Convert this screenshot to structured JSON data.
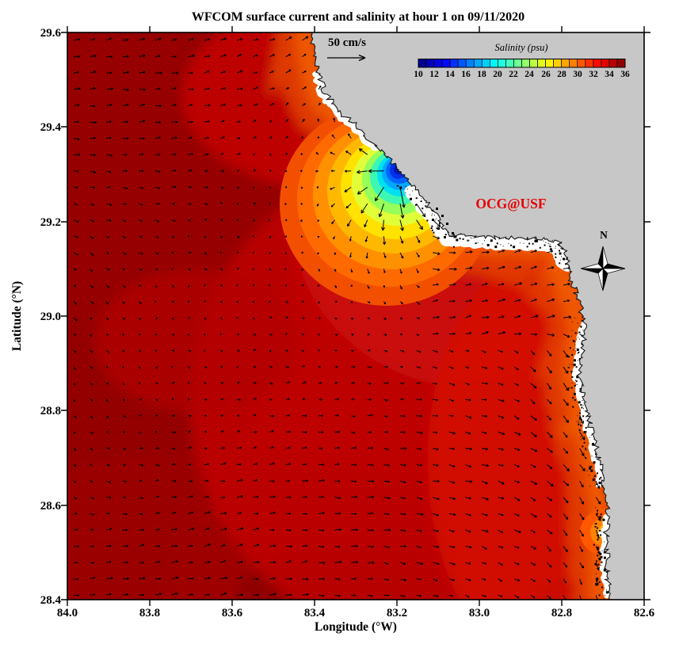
{
  "title": "WFCOM surface current and salinity at hour 1 on 09/11/2020",
  "watermark": "OCG@USF",
  "compass": {
    "label": "N"
  },
  "scale_arrow": {
    "label": "50 cm/s"
  },
  "axes": {
    "xlabel": "Longitude (°W)",
    "ylabel": "Latitude (°N)",
    "x_ticks": [
      "84.0",
      "83.8",
      "83.6",
      "83.4",
      "83.2",
      "83.0",
      "82.8",
      "82.6"
    ],
    "y_ticks": [
      "29.6",
      "29.4",
      "29.2",
      "29.0",
      "28.8",
      "28.6",
      "28.4"
    ]
  },
  "colorbar": {
    "title": "Salinity (psu)",
    "ticks": [
      "10",
      "12",
      "14",
      "16",
      "18",
      "20",
      "22",
      "24",
      "26",
      "28",
      "30",
      "32",
      "34",
      "36"
    ],
    "range": [
      10,
      36
    ],
    "segments": 26,
    "colormap": "jet"
  },
  "colors": {
    "land": "#c7c7c7",
    "ocean_high_salinity": "#a60404",
    "coastal_band_orange": "#e85000",
    "plume_core_blue": "#0018b4",
    "watermark_red": "#e60000",
    "vector_black": "#000000"
  },
  "chart_data": {
    "type": "heatmap",
    "subtype": "coastal ocean model salinity field with current quiver overlay",
    "title": "WFCOM surface current and salinity at hour 1 on 09/11/2020",
    "xlabel": "Longitude (°W)",
    "ylabel": "Latitude (°N)",
    "xlim": [
      84.0,
      82.6
    ],
    "ylim": [
      28.4,
      29.6
    ],
    "x_ticks": [
      84.0,
      83.8,
      83.6,
      83.4,
      83.2,
      83.0,
      82.8,
      82.6
    ],
    "y_ticks": [
      29.6,
      29.4,
      29.2,
      29.0,
      28.8,
      28.6,
      28.4
    ],
    "colorbar": {
      "label": "Salinity (psu)",
      "min": 10,
      "max": 36,
      "tick_step": 2,
      "segments": 26,
      "colormap": "jet",
      "position": "top-right on land"
    },
    "vector_field": {
      "type": "surface current quiver",
      "reference_vector": "50 cm/s",
      "typical_offshore_speed_cm_s": 5,
      "plume_outflow_speed_cm_s": 25
    },
    "salinity_features": [
      {
        "name": "ambient shelf water",
        "salinity_psu": [
          34,
          36
        ],
        "extent": "most of the model domain (dark red)"
      },
      {
        "name": "low-salinity river plume",
        "center_lon_w": 83.2,
        "center_lat_n": 29.32,
        "min_salinity_psu": 10,
        "note": "concentric rings from ~10 psu (dark blue core at coast) through cyan/green/yellow/orange to ~34 psu"
      },
      {
        "name": "coastal fresher band",
        "salinity_psu": [
          30,
          34
        ],
        "extent": "orange band hugging the coastline from the plume southward"
      },
      {
        "name": "secondary coastal low-salinity spot",
        "center_lon_w": 82.7,
        "center_lat_n": 28.54,
        "min_salinity_psu": 26
      }
    ],
    "land": "gray Florida Big Bend coastline occupying upper-right and right side, jagged marshy coast with small islands",
    "grid": false,
    "legend_position": "none"
  }
}
